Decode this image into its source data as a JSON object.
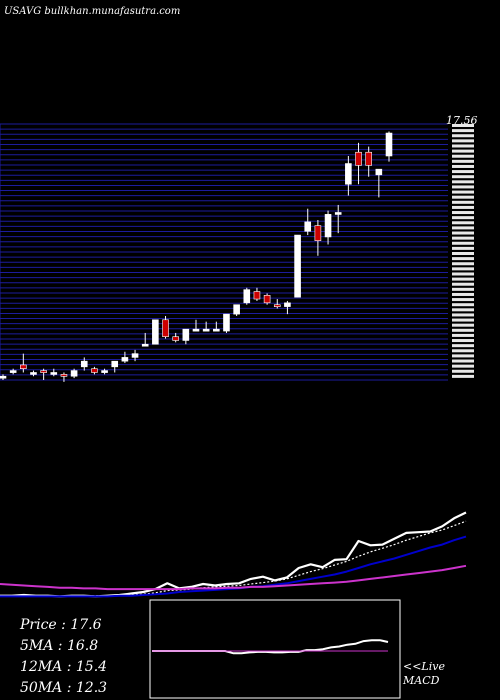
{
  "header": {
    "site_title": "USAVG bullkhan.munafasutra.com"
  },
  "price_panel": {
    "last_price_label": "17.56"
  },
  "info": {
    "price_label": "Price   : 17.6",
    "ma5_label": "5MA : 16.8",
    "ma12_label": "12MA : 15.4",
    "ma50_label": "50MA : 12.3"
  },
  "macd": {
    "live_label": "<<Live",
    "macd_label": "MACD"
  },
  "colors": {
    "background": "#000000",
    "grid": "#1c1c9c",
    "candle_up": "#ffffff",
    "candle_down": "#cc0000",
    "price_line": "#ffffff",
    "ma_short": "#ffffff",
    "ma_mid": "#0000cc",
    "ma_long": "#cc33cc"
  },
  "chart_data": [
    {
      "type": "candlestick",
      "ylim": [
        11.0,
        17.8
      ],
      "candles": [
        {
          "o": 11.05,
          "h": 11.15,
          "l": 11.0,
          "c": 11.1
        },
        {
          "o": 11.2,
          "h": 11.3,
          "l": 11.15,
          "c": 11.25
        },
        {
          "o": 11.4,
          "h": 11.7,
          "l": 11.2,
          "c": 11.3
        },
        {
          "o": 11.2,
          "h": 11.25,
          "l": 11.1,
          "c": 11.2
        },
        {
          "o": 11.25,
          "h": 11.3,
          "l": 11.0,
          "c": 11.2
        },
        {
          "o": 11.2,
          "h": 11.3,
          "l": 11.1,
          "c": 11.2
        },
        {
          "o": 11.15,
          "h": 11.2,
          "l": 10.95,
          "c": 11.1
        },
        {
          "o": 11.1,
          "h": 11.3,
          "l": 11.05,
          "c": 11.25
        },
        {
          "o": 11.35,
          "h": 11.6,
          "l": 11.25,
          "c": 11.5
        },
        {
          "o": 11.3,
          "h": 11.35,
          "l": 11.15,
          "c": 11.2
        },
        {
          "o": 11.2,
          "h": 11.3,
          "l": 11.15,
          "c": 11.25
        },
        {
          "o": 11.35,
          "h": 11.5,
          "l": 11.2,
          "c": 11.5
        },
        {
          "o": 11.5,
          "h": 11.75,
          "l": 11.45,
          "c": 11.6
        },
        {
          "o": 11.6,
          "h": 11.8,
          "l": 11.5,
          "c": 11.7
        },
        {
          "o": 11.95,
          "h": 12.25,
          "l": 11.9,
          "c": 11.95
        },
        {
          "o": 11.95,
          "h": 12.6,
          "l": 11.95,
          "c": 12.6
        },
        {
          "o": 12.6,
          "h": 12.7,
          "l": 12.1,
          "c": 12.15
        },
        {
          "o": 12.15,
          "h": 12.25,
          "l": 12.0,
          "c": 12.05
        },
        {
          "o": 12.05,
          "h": 12.35,
          "l": 11.95,
          "c": 12.35
        },
        {
          "o": 12.35,
          "h": 12.6,
          "l": 12.3,
          "c": 12.35
        },
        {
          "o": 12.35,
          "h": 12.55,
          "l": 12.3,
          "c": 12.35
        },
        {
          "o": 12.35,
          "h": 12.55,
          "l": 12.3,
          "c": 12.35
        },
        {
          "o": 12.3,
          "h": 12.75,
          "l": 12.25,
          "c": 12.75
        },
        {
          "o": 12.75,
          "h": 13.0,
          "l": 12.7,
          "c": 13.0
        },
        {
          "o": 13.05,
          "h": 13.45,
          "l": 13.0,
          "c": 13.4
        },
        {
          "o": 13.35,
          "h": 13.45,
          "l": 13.1,
          "c": 13.15
        },
        {
          "o": 13.25,
          "h": 13.3,
          "l": 13.0,
          "c": 13.05
        },
        {
          "o": 13.0,
          "h": 13.15,
          "l": 12.9,
          "c": 12.95
        },
        {
          "o": 12.95,
          "h": 13.1,
          "l": 12.75,
          "c": 13.05
        },
        {
          "o": 13.2,
          "h": 14.85,
          "l": 13.2,
          "c": 14.85
        },
        {
          "o": 14.95,
          "h": 15.55,
          "l": 14.85,
          "c": 15.2
        },
        {
          "o": 15.1,
          "h": 15.25,
          "l": 14.3,
          "c": 14.7
        },
        {
          "o": 14.8,
          "h": 15.5,
          "l": 14.6,
          "c": 15.4
        },
        {
          "o": 15.45,
          "h": 15.65,
          "l": 14.9,
          "c": 15.45
        },
        {
          "o": 16.2,
          "h": 16.95,
          "l": 15.9,
          "c": 16.75
        },
        {
          "o": 17.05,
          "h": 17.3,
          "l": 16.2,
          "c": 16.7
        },
        {
          "o": 17.05,
          "h": 17.2,
          "l": 16.4,
          "c": 16.7
        },
        {
          "o": 16.45,
          "h": 16.6,
          "l": 15.85,
          "c": 16.6
        },
        {
          "o": 16.95,
          "h": 17.6,
          "l": 16.8,
          "c": 17.56
        }
      ]
    },
    {
      "type": "line",
      "series": [
        {
          "values": [
            1.0,
            1.0,
            1.1,
            1.0,
            1.0,
            0.9,
            1.0,
            1.0,
            0.9,
            1.0,
            1.1,
            1.3,
            1.5,
            1.9,
            2.7,
            2.0,
            2.2,
            2.6,
            2.4,
            2.6,
            2.7,
            3.3,
            3.6,
            3.1,
            3.5,
            4.8,
            5.3,
            4.9,
            5.9,
            6.0,
            8.5,
            7.9,
            8.0,
            8.8,
            9.6,
            9.7,
            9.8,
            10.5,
            11.6,
            12.4
          ]
        },
        {
          "values": [
            0.9,
            0.9,
            0.9,
            0.9,
            0.9,
            0.9,
            0.9,
            0.9,
            1.0,
            1.0,
            1.0,
            1.1,
            1.2,
            1.4,
            1.7,
            1.8,
            1.9,
            2.1,
            2.2,
            2.3,
            2.4,
            2.6,
            2.8,
            3.0,
            3.3,
            3.8,
            4.3,
            4.7,
            5.2,
            5.7,
            6.4,
            7.0,
            7.5,
            8.0,
            8.6,
            9.1,
            9.6,
            10.0,
            10.6,
            11.2
          ]
        },
        {
          "values": [
            0.9,
            0.9,
            0.9,
            0.9,
            0.9,
            0.9,
            0.9,
            0.9,
            0.9,
            0.9,
            1.0,
            1.0,
            1.1,
            1.2,
            1.3,
            1.5,
            1.6,
            1.7,
            1.8,
            1.9,
            2.0,
            2.2,
            2.3,
            2.5,
            2.7,
            3.0,
            3.3,
            3.6,
            3.9,
            4.3,
            4.8,
            5.3,
            5.7,
            6.1,
            6.6,
            7.1,
            7.6,
            8.0,
            8.6,
            9.1
          ]
        },
        {
          "values": [
            2.6,
            2.5,
            2.4,
            2.3,
            2.2,
            2.1,
            2.1,
            2.0,
            2.0,
            1.9,
            1.9,
            1.9,
            1.9,
            1.9,
            1.9,
            1.9,
            2.0,
            2.0,
            2.0,
            2.1,
            2.1,
            2.2,
            2.2,
            2.3,
            2.4,
            2.5,
            2.6,
            2.7,
            2.8,
            2.9,
            3.1,
            3.3,
            3.5,
            3.7,
            3.9,
            4.1,
            4.3,
            4.5,
            4.8,
            5.1
          ]
        }
      ]
    },
    {
      "type": "line",
      "series": [
        {
          "values": [
            0.0,
            0.0,
            0.0,
            0.0,
            0.0,
            0.0,
            0.0,
            0.0,
            0.0,
            0.0,
            -0.25,
            -0.25,
            -0.15,
            -0.1,
            -0.1,
            -0.15,
            -0.15,
            -0.1,
            -0.1,
            0.1,
            0.1,
            0.2,
            0.4,
            0.5,
            0.7,
            0.8,
            1.1,
            1.2,
            1.2,
            1.0
          ]
        },
        {
          "values": [
            0.0,
            0.0,
            0.0,
            0.0,
            0.0,
            0.0,
            0.0,
            0.0,
            0.0,
            0.0,
            0.0,
            0.0,
            0.0,
            0.0,
            0.0,
            0.0,
            0.0,
            0.0,
            0.0,
            0.0,
            0.0,
            0.0,
            0.0,
            0.0,
            0.0,
            0.0,
            0.0,
            0.0,
            0.0,
            0.0
          ]
        }
      ]
    }
  ]
}
